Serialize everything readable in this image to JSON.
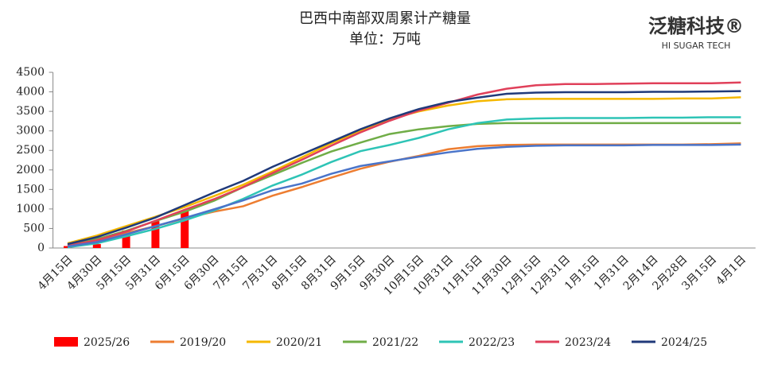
{
  "chart_data": {
    "type": "bar_line",
    "title": "巴西中南部双周累计产糖量",
    "subtitle": "单位：万吨",
    "logo": {
      "name": "泛糖科技®",
      "tagline": "HI SUGAR TECH"
    },
    "categories": [
      "4月15日",
      "4月30日",
      "5月15日",
      "5月31日",
      "6月15日",
      "6月30日",
      "7月15日",
      "7月31日",
      "8月15日",
      "8月31日",
      "9月15日",
      "9月30日",
      "10月15日",
      "10月31日",
      "11月15日",
      "11月30日",
      "12月15日",
      "12月31日",
      "1月15日",
      "1月31日",
      "2月14日",
      "2月28日",
      "3月15日",
      "4月1日"
    ],
    "ylim": [
      0,
      4500
    ],
    "yticks": [
      0,
      500,
      1000,
      1500,
      2000,
      2500,
      3000,
      3500,
      4000,
      4500
    ],
    "series": [
      {
        "name": "2025/26",
        "kind": "bar",
        "color": "#ff0000",
        "values": [
          50,
          100,
          450,
          690,
          950,
          null,
          null,
          null,
          null,
          null,
          null,
          null,
          null,
          null,
          null,
          null,
          null,
          null,
          null,
          null,
          null,
          null,
          null,
          null
        ]
      },
      {
        "name": "2019/20",
        "kind": "line",
        "color": "#ed7d31",
        "values": [
          80,
          200,
          380,
          560,
          760,
          930,
          1070,
          1340,
          1560,
          1800,
          2030,
          2210,
          2360,
          2530,
          2610,
          2640,
          2650,
          2650,
          2650,
          2650,
          2650,
          2650,
          2660,
          2680
        ]
      },
      {
        "name": "2020/21",
        "kind": "line",
        "color": "#f5b800",
        "values": [
          120,
          320,
          560,
          800,
          1050,
          1330,
          1620,
          1960,
          2320,
          2680,
          3000,
          3300,
          3500,
          3650,
          3760,
          3810,
          3820,
          3820,
          3820,
          3820,
          3820,
          3830,
          3830,
          3860
        ]
      },
      {
        "name": "2021/22",
        "kind": "line",
        "color": "#70ad47",
        "values": [
          80,
          230,
          440,
          690,
          930,
          1210,
          1560,
          1870,
          2180,
          2470,
          2700,
          2920,
          3040,
          3120,
          3180,
          3200,
          3200,
          3200,
          3200,
          3200,
          3200,
          3200,
          3200,
          3200
        ]
      },
      {
        "name": "2022/23",
        "kind": "line",
        "color": "#2ec4b6",
        "values": [
          20,
          120,
          300,
          490,
          710,
          960,
          1260,
          1600,
          1880,
          2200,
          2480,
          2640,
          2820,
          3040,
          3200,
          3290,
          3320,
          3330,
          3330,
          3330,
          3340,
          3340,
          3350,
          3350
        ]
      },
      {
        "name": "2023/24",
        "kind": "line",
        "color": "#e0405a",
        "values": [
          60,
          200,
          420,
          700,
          980,
          1250,
          1560,
          1920,
          2260,
          2620,
          2960,
          3260,
          3520,
          3720,
          3930,
          4080,
          4170,
          4200,
          4200,
          4210,
          4220,
          4220,
          4220,
          4240
        ]
      },
      {
        "name": "2024/25",
        "kind": "line",
        "color": "#203a7a",
        "values": [
          100,
          280,
          520,
          780,
          1100,
          1420,
          1720,
          2080,
          2400,
          2720,
          3040,
          3320,
          3560,
          3740,
          3850,
          3950,
          3980,
          3990,
          3990,
          3990,
          4000,
          4000,
          4010,
          4020
        ]
      },
      {
        "name": null,
        "kind": "line",
        "color": "#4a74c9",
        "values": [
          40,
          150,
          350,
          560,
          770,
          990,
          1220,
          1480,
          1650,
          1900,
          2100,
          2220,
          2340,
          2450,
          2540,
          2590,
          2620,
          2630,
          2630,
          2630,
          2640,
          2640,
          2640,
          2650
        ]
      }
    ]
  }
}
